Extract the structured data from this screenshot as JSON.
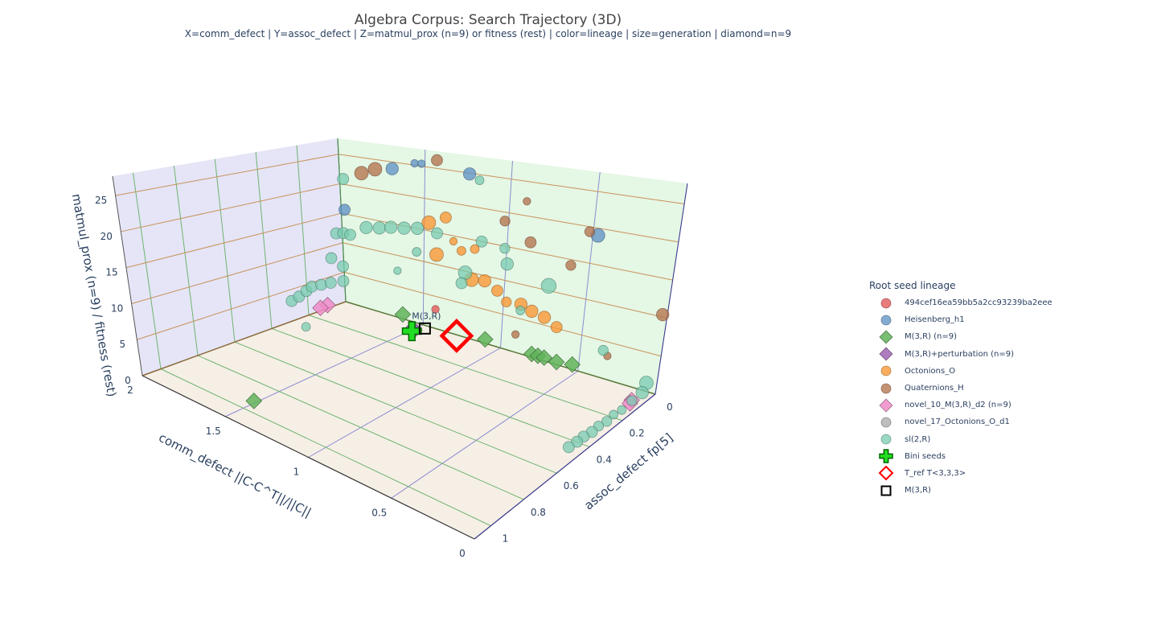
{
  "chart_data": {
    "type": "scatter3d",
    "title": "Algebra Corpus: Search Trajectory (3D)",
    "subtitle": "X=comm_defect | Y=assoc_defect | Z=matmul_prox (n=9) or fitness (rest) | color=lineage | size=generation | diamond=n=9",
    "xaxis": {
      "title": "comm_defect  ||C-C^T||/||C||",
      "range": [
        0,
        2
      ],
      "ticks": [
        "0",
        "0.5",
        "1",
        "1.5",
        "2"
      ],
      "tickvals": [
        0,
        0.5,
        1,
        1.5,
        2
      ]
    },
    "yaxis": {
      "title": "assoc_defect  fp[5]",
      "range": [
        0,
        1.1
      ],
      "ticks": [
        "0",
        "0.2",
        "0.4",
        "0.6",
        "0.8",
        "1"
      ],
      "tickvals": [
        0,
        0.2,
        0.4,
        0.6,
        0.8,
        1
      ]
    },
    "zaxis": {
      "title": "matmul_prox (n=9) / fitness (rest)",
      "range": [
        0,
        27.7
      ],
      "ticks": [
        "0",
        "5",
        "10",
        "15",
        "20",
        "25"
      ],
      "tickvals": [
        0,
        5,
        10,
        15,
        20,
        25
      ]
    },
    "walls": {
      "x": "#e5e5f7",
      "y": "#e5f7e5",
      "z": "#f5efe6"
    },
    "grid_colors": {
      "x": "#8c8cd0",
      "y": "#6fb36f",
      "z": "#c8925a"
    },
    "legend": {
      "title": "Root seed lineage",
      "placement": "right"
    },
    "series": [
      {
        "name": "494cef16ea59bb5a2cc93239ba2eee",
        "color": "#e04f4f",
        "symbol": "circle",
        "points": [
          [
            1.4,
            0.02,
            3.4,
            3
          ]
        ]
      },
      {
        "name": "Heisenberg_h1",
        "color": "#5b8fc3",
        "symbol": "circle",
        "points": [
          [
            1.69,
            0.0,
            23.9,
            7
          ],
          [
            1.56,
            0.0,
            25.3,
            3
          ],
          [
            1.52,
            0.0,
            25.4,
            3
          ],
          [
            1.23,
            0.01,
            25.0,
            7
          ],
          [
            0.44,
            0.03,
            19.5,
            8
          ],
          [
            1.98,
            0.0,
            15.7,
            6
          ]
        ]
      },
      {
        "name": "M(3,R) (n=9)",
        "color": "#62b35a",
        "symbol": "diamond",
        "points": [
          [
            0.78,
            0.02,
            0.9,
            8
          ],
          [
            0.74,
            0.02,
            0.9,
            8
          ],
          [
            0.7,
            0.02,
            0.9,
            8
          ],
          [
            0.62,
            0.02,
            0.8,
            8
          ],
          [
            0.52,
            0.02,
            1.1,
            8
          ],
          [
            1.09,
            0.01,
            0.8,
            8
          ],
          [
            1.62,
            0.01,
            0.9,
            8
          ],
          [
            1.5,
            0.94,
            0.3,
            8
          ]
        ]
      },
      {
        "name": "M(3,R)+perturbation (n=9)",
        "color": "#a066b5",
        "symbol": "diamond",
        "points": [
          [
            1.5,
            0.06,
            0.3,
            6
          ],
          [
            1.47,
            0.07,
            0.3,
            6
          ]
        ]
      },
      {
        "name": "Octonions_O",
        "color": "#f9922a",
        "symbol": "circle",
        "points": [
          [
            1.45,
            0.02,
            16.6,
            8
          ],
          [
            1.35,
            0.02,
            17.9,
            6
          ],
          [
            1.4,
            0.02,
            11.9,
            8
          ],
          [
            1.25,
            0.02,
            13.3,
            4
          ],
          [
            1.17,
            0.02,
            14,
            4
          ],
          [
            1.17,
            0.03,
            9.5,
            8
          ],
          [
            1.09,
            0.03,
            9.8,
            7
          ],
          [
            1.01,
            0.03,
            8.8,
            6
          ],
          [
            0.95,
            0.03,
            7.5,
            5
          ],
          [
            0.86,
            0.03,
            7.7,
            7
          ],
          [
            0.78,
            0.04,
            7.3,
            7
          ],
          [
            0.7,
            0.04,
            6.9,
            7
          ],
          [
            0.62,
            0.04,
            6.0,
            6
          ],
          [
            1.3,
            0.02,
            14.5,
            3
          ]
        ]
      },
      {
        "name": "Quaternions_H",
        "color": "#b06d45",
        "symbol": "circle",
        "points": [
          [
            1.87,
            0.0,
            22.4,
            8
          ],
          [
            1.79,
            0.0,
            23.4,
            8
          ],
          [
            1.42,
            0.01,
            26.4,
            6
          ],
          [
            0.88,
            0.02,
            22.4,
            3
          ],
          [
            0.49,
            0.03,
            19.8,
            5
          ],
          [
            0.83,
            0.03,
            16.8,
            6
          ],
          [
            0.57,
            0.04,
            14.9,
            5
          ],
          [
            0.0,
            0.03,
            10.9,
            7
          ],
          [
            0.29,
            0.04,
            4.0,
            3
          ],
          [
            0.88,
            0.03,
            3.2,
            3
          ],
          [
            1.0,
            0.02,
            19,
            5
          ]
        ]
      },
      {
        "name": "novel_10_M(3,R)_d2 (n=9)",
        "color": "#f08cc8",
        "symbol": "diamond",
        "points": [
          [
            0.05,
            0.1,
            0.6,
            8
          ],
          [
            0.04,
            0.12,
            0.6,
            8
          ],
          [
            1.96,
            0.13,
            1.2,
            8
          ],
          [
            1.97,
            0.16,
            1.0,
            8
          ]
        ]
      },
      {
        "name": "novel_17_Octonions_O_d1",
        "color": "#a8a8a8",
        "symbol": "circle",
        "points": []
      },
      {
        "name": "sl(2,R)",
        "color": "#78cbb0",
        "symbol": "circle",
        "points": [
          [
            0.02,
            0.05,
            2.2,
            8
          ],
          [
            0.01,
            0.08,
            1.5,
            7
          ],
          [
            0.03,
            0.12,
            1.0,
            5
          ],
          [
            0.03,
            0.18,
            0.8,
            4
          ],
          [
            0.04,
            0.22,
            0.8,
            4
          ],
          [
            0.04,
            0.26,
            0.6,
            5
          ],
          [
            0.05,
            0.3,
            0.6,
            5
          ],
          [
            0.05,
            0.34,
            0.5,
            6
          ],
          [
            0.06,
            0.38,
            0.5,
            6
          ],
          [
            0.06,
            0.42,
            0.5,
            6
          ],
          [
            0.07,
            0.46,
            0.4,
            6
          ],
          [
            1.98,
            0.3,
            3.5,
            6
          ],
          [
            1.98,
            0.26,
            3.8,
            6
          ],
          [
            1.98,
            0.22,
            4.3,
            6
          ],
          [
            1.98,
            0.19,
            4.7,
            6
          ],
          [
            1.98,
            0.14,
            4.5,
            6
          ],
          [
            1.98,
            0.09,
            4.3,
            6
          ],
          [
            1.96,
            0.04,
            4.2,
            6
          ],
          [
            1.98,
            0.08,
            8.3,
            6
          ],
          [
            1.97,
            0.03,
            6.5,
            6
          ],
          [
            1.99,
            0.04,
            12,
            6
          ],
          [
            1.97,
            0.02,
            12,
            6
          ],
          [
            1.94,
            0.01,
            11.8,
            6
          ],
          [
            1.98,
            0.0,
            20.9,
            6
          ],
          [
            1.84,
            0.01,
            13.6,
            7
          ],
          [
            1.76,
            0.01,
            14,
            7
          ],
          [
            1.69,
            0.01,
            14.5,
            7
          ],
          [
            1.61,
            0.01,
            14.8,
            7
          ],
          [
            1.53,
            0.01,
            15.2,
            7
          ],
          [
            1.4,
            0.02,
            15.2,
            6
          ],
          [
            1.16,
            0.02,
            24.4,
            4
          ],
          [
            0.68,
            0.05,
            11.6,
            9
          ],
          [
            0.96,
            0.03,
            13,
            7
          ],
          [
            1.12,
            0.03,
            15.5,
            6
          ],
          [
            1.2,
            0.04,
            10.5,
            8
          ],
          [
            1.22,
            0.04,
            8.8,
            6
          ],
          [
            1.51,
            0.03,
            11.8,
            4
          ],
          [
            1.64,
            0.02,
            7.9,
            3
          ],
          [
            0.98,
            0.03,
            15.2,
            5
          ],
          [
            0.85,
            0.04,
            7,
            4
          ],
          [
            0.3,
            0.06,
            5,
            5
          ],
          [
            1.9,
            0.3,
            0.1,
            4
          ]
        ]
      },
      {
        "name": "Bini seeds",
        "color": "#22dd22",
        "symbol": "cross",
        "points": [
          [
            1.48,
            0.08,
            0.2,
            9
          ]
        ]
      },
      {
        "name": "T_ref  T<3,3,3>",
        "color": "#ff0000",
        "symbol": "diamond-open",
        "points": [
          [
            1.25,
            0.03,
            0.5,
            14
          ]
        ]
      },
      {
        "name": "M(3,R)",
        "color": "#000000",
        "symbol": "square-open",
        "points": [
          [
            1.42,
            0.06,
            0.8,
            5
          ]
        ]
      }
    ],
    "annotations": [
      {
        "text": "M(3,R)",
        "x": 1.42,
        "y": 0.06,
        "z": 0.8
      }
    ]
  }
}
